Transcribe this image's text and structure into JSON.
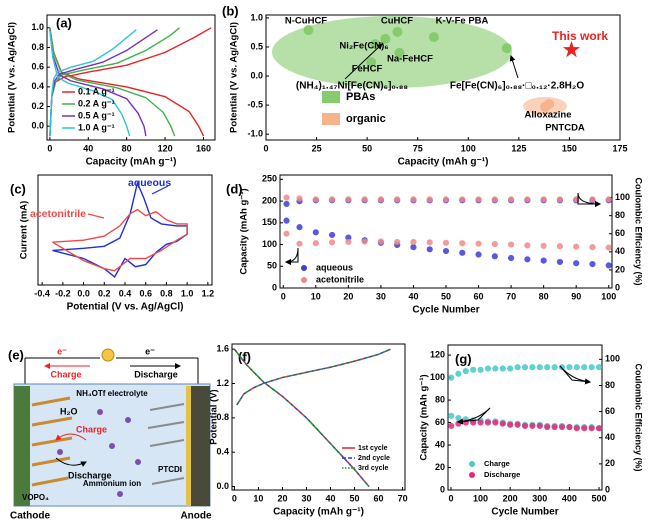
{
  "chart_data": [
    {
      "type": "line",
      "panel_label": "(a)",
      "x_label": "Capacity (mAh g⁻¹)",
      "y_label": "Potential (V vs. Ag/AgCl)",
      "xlim": [
        -3,
        172
      ],
      "ylim": [
        -0.14,
        1.13
      ],
      "xticks": [
        0,
        40,
        80,
        120,
        160
      ],
      "yticks": [
        {
          "value": 0,
          "label": "0.0"
        },
        0.2,
        0.4,
        0.6,
        0.8,
        {
          "value": 1,
          "label": "1.0"
        }
      ],
      "series": [
        {
          "name": "0.1 A g⁻¹",
          "color": "#e8232a",
          "x": [
            0,
            2,
            6,
            15,
            40,
            80,
            120,
            150,
            168,
            null,
            0,
            4,
            12,
            30,
            80,
            120,
            145,
            155,
            160
          ],
          "values": [
            -0.1,
            0.3,
            0.45,
            0.5,
            0.55,
            0.62,
            0.75,
            0.9,
            1.0,
            null,
            1.0,
            0.75,
            0.55,
            0.48,
            0.4,
            0.3,
            0.15,
            0.0,
            -0.1
          ]
        },
        {
          "name": "0.2 A g⁻¹",
          "color": "#3cb44b",
          "x": [
            0,
            2,
            6,
            12,
            35,
            70,
            100,
            125,
            135,
            null,
            0,
            4,
            12,
            28,
            70,
            100,
            118,
            126,
            130
          ],
          "values": [
            -0.1,
            0.3,
            0.45,
            0.52,
            0.57,
            0.64,
            0.77,
            0.92,
            1.0,
            null,
            1.0,
            0.74,
            0.54,
            0.47,
            0.39,
            0.29,
            0.14,
            0.0,
            -0.1
          ]
        },
        {
          "name": "0.5 A g⁻¹",
          "color": "#7b2fbe",
          "x": [
            0,
            2,
            5,
            10,
            28,
            55,
            80,
            100,
            112,
            null,
            0,
            3,
            10,
            22,
            55,
            80,
            92,
            98,
            100
          ],
          "values": [
            -0.1,
            0.31,
            0.46,
            0.53,
            0.58,
            0.65,
            0.77,
            0.9,
            0.98,
            null,
            0.98,
            0.72,
            0.52,
            0.46,
            0.38,
            0.28,
            0.13,
            0.0,
            -0.1
          ]
        },
        {
          "name": "1.0 A g⁻¹",
          "color": "#2ec4d6",
          "x": [
            0,
            2,
            4,
            8,
            22,
            45,
            65,
            80,
            90,
            null,
            0,
            3,
            8,
            18,
            45,
            65,
            75,
            80,
            83
          ],
          "values": [
            -0.1,
            0.32,
            0.48,
            0.55,
            0.6,
            0.66,
            0.78,
            0.9,
            0.98,
            null,
            0.97,
            0.7,
            0.5,
            0.44,
            0.36,
            0.27,
            0.12,
            0.0,
            -0.1
          ]
        }
      ]
    },
    {
      "type": "scatter",
      "panel_label": "(b)",
      "x_label": "Capacity (mAh g⁻¹)",
      "y_label": "Potential (V vs. Ag/AgCl)",
      "xlim": [
        0,
        175
      ],
      "ylim": [
        -1.1,
        1.05
      ],
      "xticks": [
        0,
        25,
        50,
        75,
        100,
        125,
        150,
        175
      ],
      "yticks": [
        {
          "value": -1,
          "label": "-1.0"
        },
        -0.5,
        {
          "value": 0,
          "label": "0.0"
        },
        0.5,
        {
          "value": 1,
          "label": "1.0"
        }
      ],
      "series": [
        {
          "name": "PBAs",
          "color": "#86cc6e",
          "labels": [
            "N-CuHCF",
            "CuHCF",
            "K-V-Fe PBA",
            "Ni₂Fe(CN)₆",
            "Na-FeHCF",
            "FeHCF",
            "(NH₄)₁.₄₇Ni[Fe(CN)₆]₀.₈₈",
            "Fe[Fe(CN)₆]₀.₈₈·□₀.₁₂·2.8H₂O"
          ],
          "x": [
            21,
            65,
            83,
            54,
            66,
            52,
            59,
            119
          ],
          "values": [
            0.79,
            0.76,
            0.67,
            0.55,
            0.4,
            0.24,
            0.64,
            0.48
          ]
        },
        {
          "name": "organic",
          "color": "#f5b48a",
          "labels": [
            "Alloxazine",
            "PNTCDA"
          ],
          "x": [
            140,
            138
          ],
          "values": [
            -0.48,
            -0.53
          ]
        }
      ],
      "highlight": {
        "label": "This work",
        "x": 151,
        "y": 0.45,
        "color": "#e8231f"
      }
    },
    {
      "type": "line",
      "panel_label": "(c)",
      "x_label": "Potential (V vs. Ag/AgCl)",
      "y_label": "Current (mA)",
      "xlim": [
        -0.44,
        1.24
      ],
      "ylim": [
        -0.95,
        1.75
      ],
      "xticks": [
        -0.4,
        -0.2,
        {
          "value": 0,
          "label": "0.0"
        },
        0.2,
        0.4,
        0.6,
        0.8,
        {
          "value": 1,
          "label": "1.0"
        },
        1.2
      ],
      "series": [
        {
          "name": "aqueous",
          "color": "#1f2fd6",
          "x": [
            -0.3,
            0.0,
            0.2,
            0.35,
            0.45,
            0.52,
            0.58,
            0.65,
            0.75,
            0.9,
            1.0,
            1.0,
            0.9,
            0.8,
            0.7,
            0.6,
            0.5,
            0.4,
            0.3,
            0.2,
            0.0,
            -0.3
          ],
          "values": [
            -0.1,
            -0.05,
            0.0,
            0.2,
            0.8,
            1.55,
            1.2,
            0.7,
            0.55,
            0.5,
            0.5,
            0.3,
            0.12,
            0.05,
            -0.15,
            -0.45,
            -0.5,
            -0.3,
            -0.75,
            -0.55,
            -0.3,
            -0.1
          ]
        },
        {
          "name": "acetonitrile",
          "color": "#ef4a4a",
          "x": [
            -0.3,
            0.0,
            0.2,
            0.35,
            0.45,
            0.52,
            0.6,
            0.7,
            0.8,
            0.9,
            1.0,
            1.0,
            0.9,
            0.75,
            0.6,
            0.45,
            0.3,
            0.2,
            0.0,
            -0.3
          ],
          "values": [
            0.1,
            0.15,
            0.25,
            0.5,
            0.8,
            0.9,
            0.75,
            0.85,
            0.65,
            0.55,
            0.55,
            0.3,
            0.15,
            -0.1,
            -0.3,
            -0.3,
            -0.6,
            -0.55,
            -0.35,
            0.1
          ]
        }
      ]
    },
    {
      "type": "scatter",
      "panel_label": "(d)",
      "x_label": "Cycle Number",
      "y_label": "Capacity (mAh g⁻¹)",
      "y2_label": "Coulombic Efficiency (%)",
      "xlim": [
        -1,
        101
      ],
      "ylim": [
        0,
        260
      ],
      "y2lim": [
        0,
        125
      ],
      "xticks": [
        0,
        10,
        20,
        30,
        40,
        50,
        60,
        70,
        80,
        90,
        100
      ],
      "yticks": [
        0,
        50,
        100,
        150,
        200,
        250
      ],
      "y2ticks": [
        0,
        20,
        40,
        60,
        80,
        100
      ],
      "x": [
        1,
        5,
        10,
        15,
        20,
        25,
        30,
        35,
        40,
        45,
        50,
        55,
        60,
        65,
        70,
        75,
        80,
        85,
        90,
        95,
        100
      ],
      "series": [
        {
          "name": "aqueous",
          "color": "#3d3ddb",
          "values": [
            155,
            140,
            128,
            122,
            116,
            110,
            104,
            99,
            94,
            89,
            85,
            81,
            77,
            73,
            69,
            66,
            63,
            60,
            57,
            55,
            52
          ]
        },
        {
          "name": "acetonitrile",
          "color": "#f08a8a",
          "values": [
            125,
            102,
            103,
            105,
            106,
            107,
            107,
            106,
            106,
            105,
            104,
            103,
            102,
            101,
            100,
            98,
            97,
            96,
            95,
            94,
            93
          ]
        },
        {
          "color": "#3d3ddb",
          "axis": "y2",
          "values": [
            93,
            96,
            97,
            97,
            97,
            97,
            97,
            97,
            97,
            97,
            97,
            97,
            97,
            97,
            97,
            97,
            97,
            97,
            97,
            97,
            97
          ]
        },
        {
          "color": "#f08a8a",
          "axis": "y2",
          "values": [
            100,
            99,
            98,
            98,
            98,
            98,
            98,
            98,
            98,
            98,
            98,
            98,
            98,
            98,
            98,
            98,
            98,
            98,
            98,
            98,
            98
          ]
        }
      ]
    },
    {
      "type": "line",
      "panel_label": "(f)",
      "x_label": "Capacity (mAh g⁻¹)",
      "y_label": "Potential (V)",
      "xlim": [
        -1,
        71
      ],
      "ylim": [
        -0.04,
        1.66
      ],
      "xticks": [
        0,
        10,
        20,
        30,
        40,
        50,
        60,
        70
      ],
      "yticks": [
        {
          "value": 0,
          "label": "0.0"
        },
        0.4,
        0.8,
        1.2,
        1.6
      ],
      "series": [
        {
          "name": "1st cycle",
          "color": "#e4212b",
          "dash": "solid",
          "x": [
            1,
            4,
            8,
            12,
            20,
            30,
            40,
            50,
            60,
            65,
            null,
            0,
            5,
            12,
            20,
            30,
            40,
            50,
            56
          ],
          "values": [
            0.95,
            1.08,
            1.15,
            1.2,
            1.27,
            1.33,
            1.39,
            1.46,
            1.54,
            1.6,
            null,
            1.6,
            1.42,
            1.22,
            1.05,
            0.8,
            0.5,
            0.2,
            0
          ]
        },
        {
          "name": "2nd cycle",
          "color": "#2a36d9",
          "dash": "dashed",
          "x": [
            1,
            4,
            8,
            12,
            20,
            30,
            40,
            50,
            60,
            65,
            null,
            0,
            5,
            12,
            20,
            30,
            40,
            50,
            56
          ],
          "values": [
            0.95,
            1.08,
            1.15,
            1.2,
            1.27,
            1.33,
            1.39,
            1.46,
            1.54,
            1.6,
            null,
            1.6,
            1.42,
            1.22,
            1.05,
            0.8,
            0.5,
            0.2,
            0
          ]
        },
        {
          "name": "3rd cycle",
          "color": "#1a9e3a",
          "dash": "dotted",
          "x": [
            1,
            4,
            8,
            12,
            20,
            30,
            40,
            50,
            60,
            65,
            null,
            0,
            5,
            12,
            20,
            30,
            40,
            50,
            56
          ],
          "values": [
            0.95,
            1.08,
            1.15,
            1.2,
            1.27,
            1.33,
            1.39,
            1.46,
            1.54,
            1.6,
            null,
            1.6,
            1.42,
            1.22,
            1.05,
            0.8,
            0.5,
            0.2,
            0
          ]
        }
      ]
    },
    {
      "type": "scatter",
      "panel_label": "(g)",
      "x_label": "Cycle Number",
      "y_label": "Capacity (mAh g⁻¹)",
      "y2_label": "Coulombic Efficiency (%)",
      "xlim": [
        -10,
        510
      ],
      "ylim": [
        0,
        129
      ],
      "y2lim": [
        0,
        111
      ],
      "xticks": [
        0,
        100,
        200,
        300,
        400,
        500
      ],
      "yticks": [
        0,
        20,
        40,
        60,
        80,
        100,
        120
      ],
      "y2ticks": [
        0,
        20,
        40,
        60,
        80,
        100
      ],
      "x": [
        1,
        25,
        50,
        75,
        100,
        125,
        150,
        175,
        200,
        225,
        250,
        275,
        300,
        325,
        350,
        375,
        400,
        425,
        450,
        475,
        500
      ],
      "series": [
        {
          "name": "Charge",
          "color": "#45c9c9",
          "values": [
            66,
            64,
            63,
            62,
            62,
            61,
            61,
            60,
            59,
            59,
            58,
            58,
            58,
            57,
            57,
            57,
            56,
            56,
            56,
            56,
            55
          ]
        },
        {
          "name": "Discharge",
          "color": "#e6287a",
          "values": [
            57,
            59,
            60,
            60,
            60,
            60,
            60,
            59,
            58,
            58,
            57,
            57,
            57,
            56,
            56,
            56,
            56,
            55,
            55,
            55,
            55
          ]
        },
        {
          "color": "#45c9c9",
          "axis": "y2",
          "values": [
            86,
            89,
            91,
            92,
            92,
            93,
            93,
            93,
            93,
            94,
            94,
            94,
            94,
            94,
            94,
            94,
            94,
            94,
            94,
            94,
            94
          ]
        }
      ]
    }
  ],
  "diagram": {
    "panel_label": "(e)",
    "electron_charge": "e⁻",
    "charge": "Charge",
    "electron_discharge": "e⁻",
    "discharge": "Discharge",
    "electrolyte": "NH₄OTf electrolyte",
    "water": "H₂O",
    "charge_arrow": "Charge",
    "discharge_arrow": "Discharge",
    "cathode_material": "VOPO₄",
    "anode_material": "PTCDI",
    "ion": "Ammonium ion",
    "cathode": "Cathode",
    "anode": "Anode"
  }
}
